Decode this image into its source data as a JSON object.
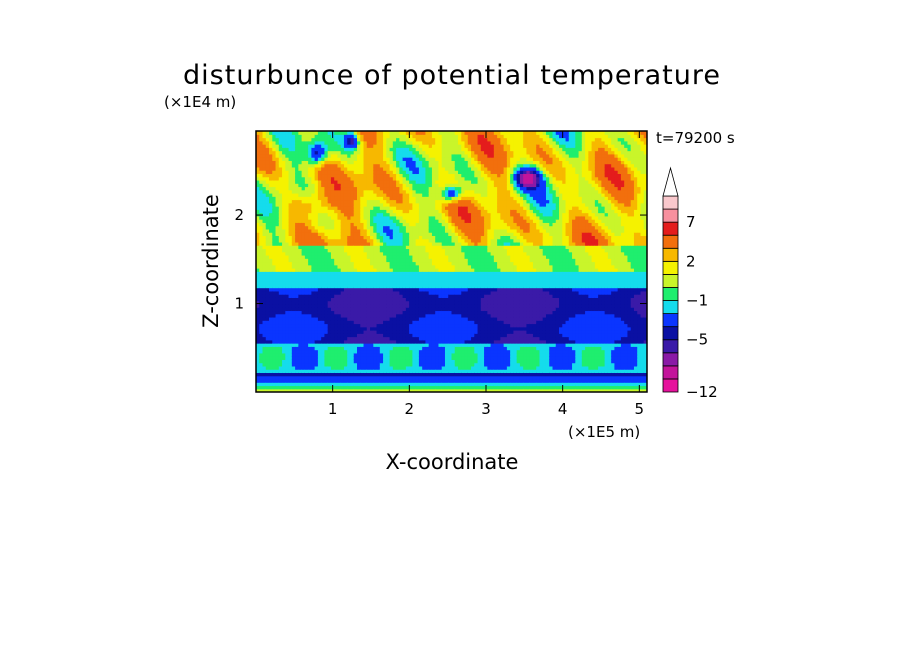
{
  "chart_data": {
    "type": "heatmap",
    "title": "disturbunce of potential temperature",
    "time_label": "t=79200 s",
    "xlabel": "X-coordinate",
    "ylabel": "Z-coordinate",
    "x_unit": "(×1E5 m)",
    "y_unit": "(×1E4 m)",
    "xlim": [
      0,
      5.1
    ],
    "ylim": [
      0,
      2.95
    ],
    "x_ticks": [
      "1",
      "2",
      "3",
      "4",
      "5"
    ],
    "y_ticks": [
      "1",
      "2"
    ],
    "colorbar": {
      "levels": [
        {
          "bound": -12,
          "color": "#e6129c"
        },
        {
          "bound": -10,
          "color": "#c3149b"
        },
        {
          "bound": -8,
          "color": "#8a1aa6"
        },
        {
          "bound": -6,
          "color": "#3a1aa8"
        },
        {
          "bound": -5,
          "color": "#0a10a3"
        },
        {
          "bound": -4,
          "color": "#0a35ff"
        },
        {
          "bound": -2,
          "color": "#15dcec"
        },
        {
          "bound": -1,
          "color": "#1fee6e"
        },
        {
          "bound": 0,
          "color": "#c9f52a"
        },
        {
          "bound": 1,
          "color": "#f5f200"
        },
        {
          "bound": 2,
          "color": "#f7b800"
        },
        {
          "bound": 3,
          "color": "#f26f0d"
        },
        {
          "bound": 5,
          "color": "#e41c1c"
        },
        {
          "bound": 7,
          "color": "#f7909e"
        },
        {
          "bound": 9,
          "color": "#f9c8cc"
        }
      ],
      "tick_labels": [
        "−12",
        "−5",
        "−1",
        "2",
        "7"
      ],
      "extend": "max"
    }
  }
}
